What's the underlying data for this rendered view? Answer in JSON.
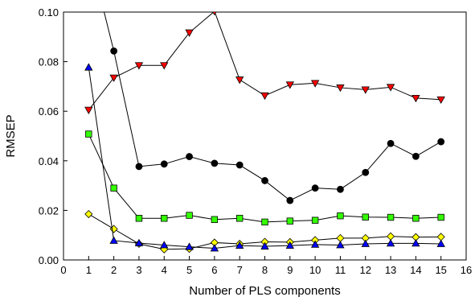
{
  "chart_data": {
    "type": "line",
    "title": "",
    "xlabel": "Number of PLS components",
    "ylabel": "RMSEP",
    "xlim": [
      0,
      16
    ],
    "ylim": [
      0,
      0.1
    ],
    "xticks": [
      0,
      1,
      2,
      3,
      4,
      5,
      6,
      7,
      8,
      9,
      10,
      11,
      12,
      13,
      14,
      15,
      16
    ],
    "yticks": [
      0.0,
      0.02,
      0.04,
      0.06,
      0.08,
      0.1
    ],
    "ytick_labels": [
      "0.00",
      "0.02",
      "0.04",
      "0.06",
      "0.08",
      "0.10"
    ],
    "grid": false,
    "legend": "none",
    "x": [
      1,
      2,
      3,
      4,
      5,
      6,
      7,
      8,
      9,
      10,
      11,
      12,
      13,
      14,
      15
    ],
    "series": [
      {
        "marker": "triangle-down",
        "color": "#ff0000",
        "values": [
          0.0605,
          0.0735,
          0.0785,
          0.0785,
          0.0917,
          0.1003,
          0.0727,
          0.0663,
          0.0707,
          0.0713,
          0.0695,
          0.0687,
          0.0697,
          0.0653,
          0.0647
        ]
      },
      {
        "marker": "circle",
        "color": "#000000",
        "values": [
          0.125,
          0.0843,
          0.0377,
          0.0387,
          0.0417,
          0.039,
          0.0383,
          0.032,
          0.024,
          0.029,
          0.0285,
          0.0353,
          0.047,
          0.0418,
          0.0477
        ]
      },
      {
        "marker": "square",
        "color": "#33ff00",
        "values": [
          0.0508,
          0.029,
          0.0168,
          0.0168,
          0.018,
          0.0163,
          0.0168,
          0.0153,
          0.0157,
          0.016,
          0.0178,
          0.0173,
          0.0172,
          0.0168,
          0.0172
        ]
      },
      {
        "marker": "diamond",
        "color": "#ffff00",
        "values": [
          0.0185,
          0.0125,
          0.0065,
          0.0043,
          0.0045,
          0.007,
          0.0065,
          0.0073,
          0.0072,
          0.008,
          0.0088,
          0.0088,
          0.0095,
          0.0092,
          0.0093
        ]
      },
      {
        "marker": "triangle-up",
        "color": "#0000ff",
        "values": [
          0.0777,
          0.0078,
          0.0068,
          0.006,
          0.0053,
          0.0047,
          0.0058,
          0.0055,
          0.0058,
          0.0062,
          0.006,
          0.0065,
          0.0067,
          0.0067,
          0.0065
        ]
      }
    ]
  }
}
